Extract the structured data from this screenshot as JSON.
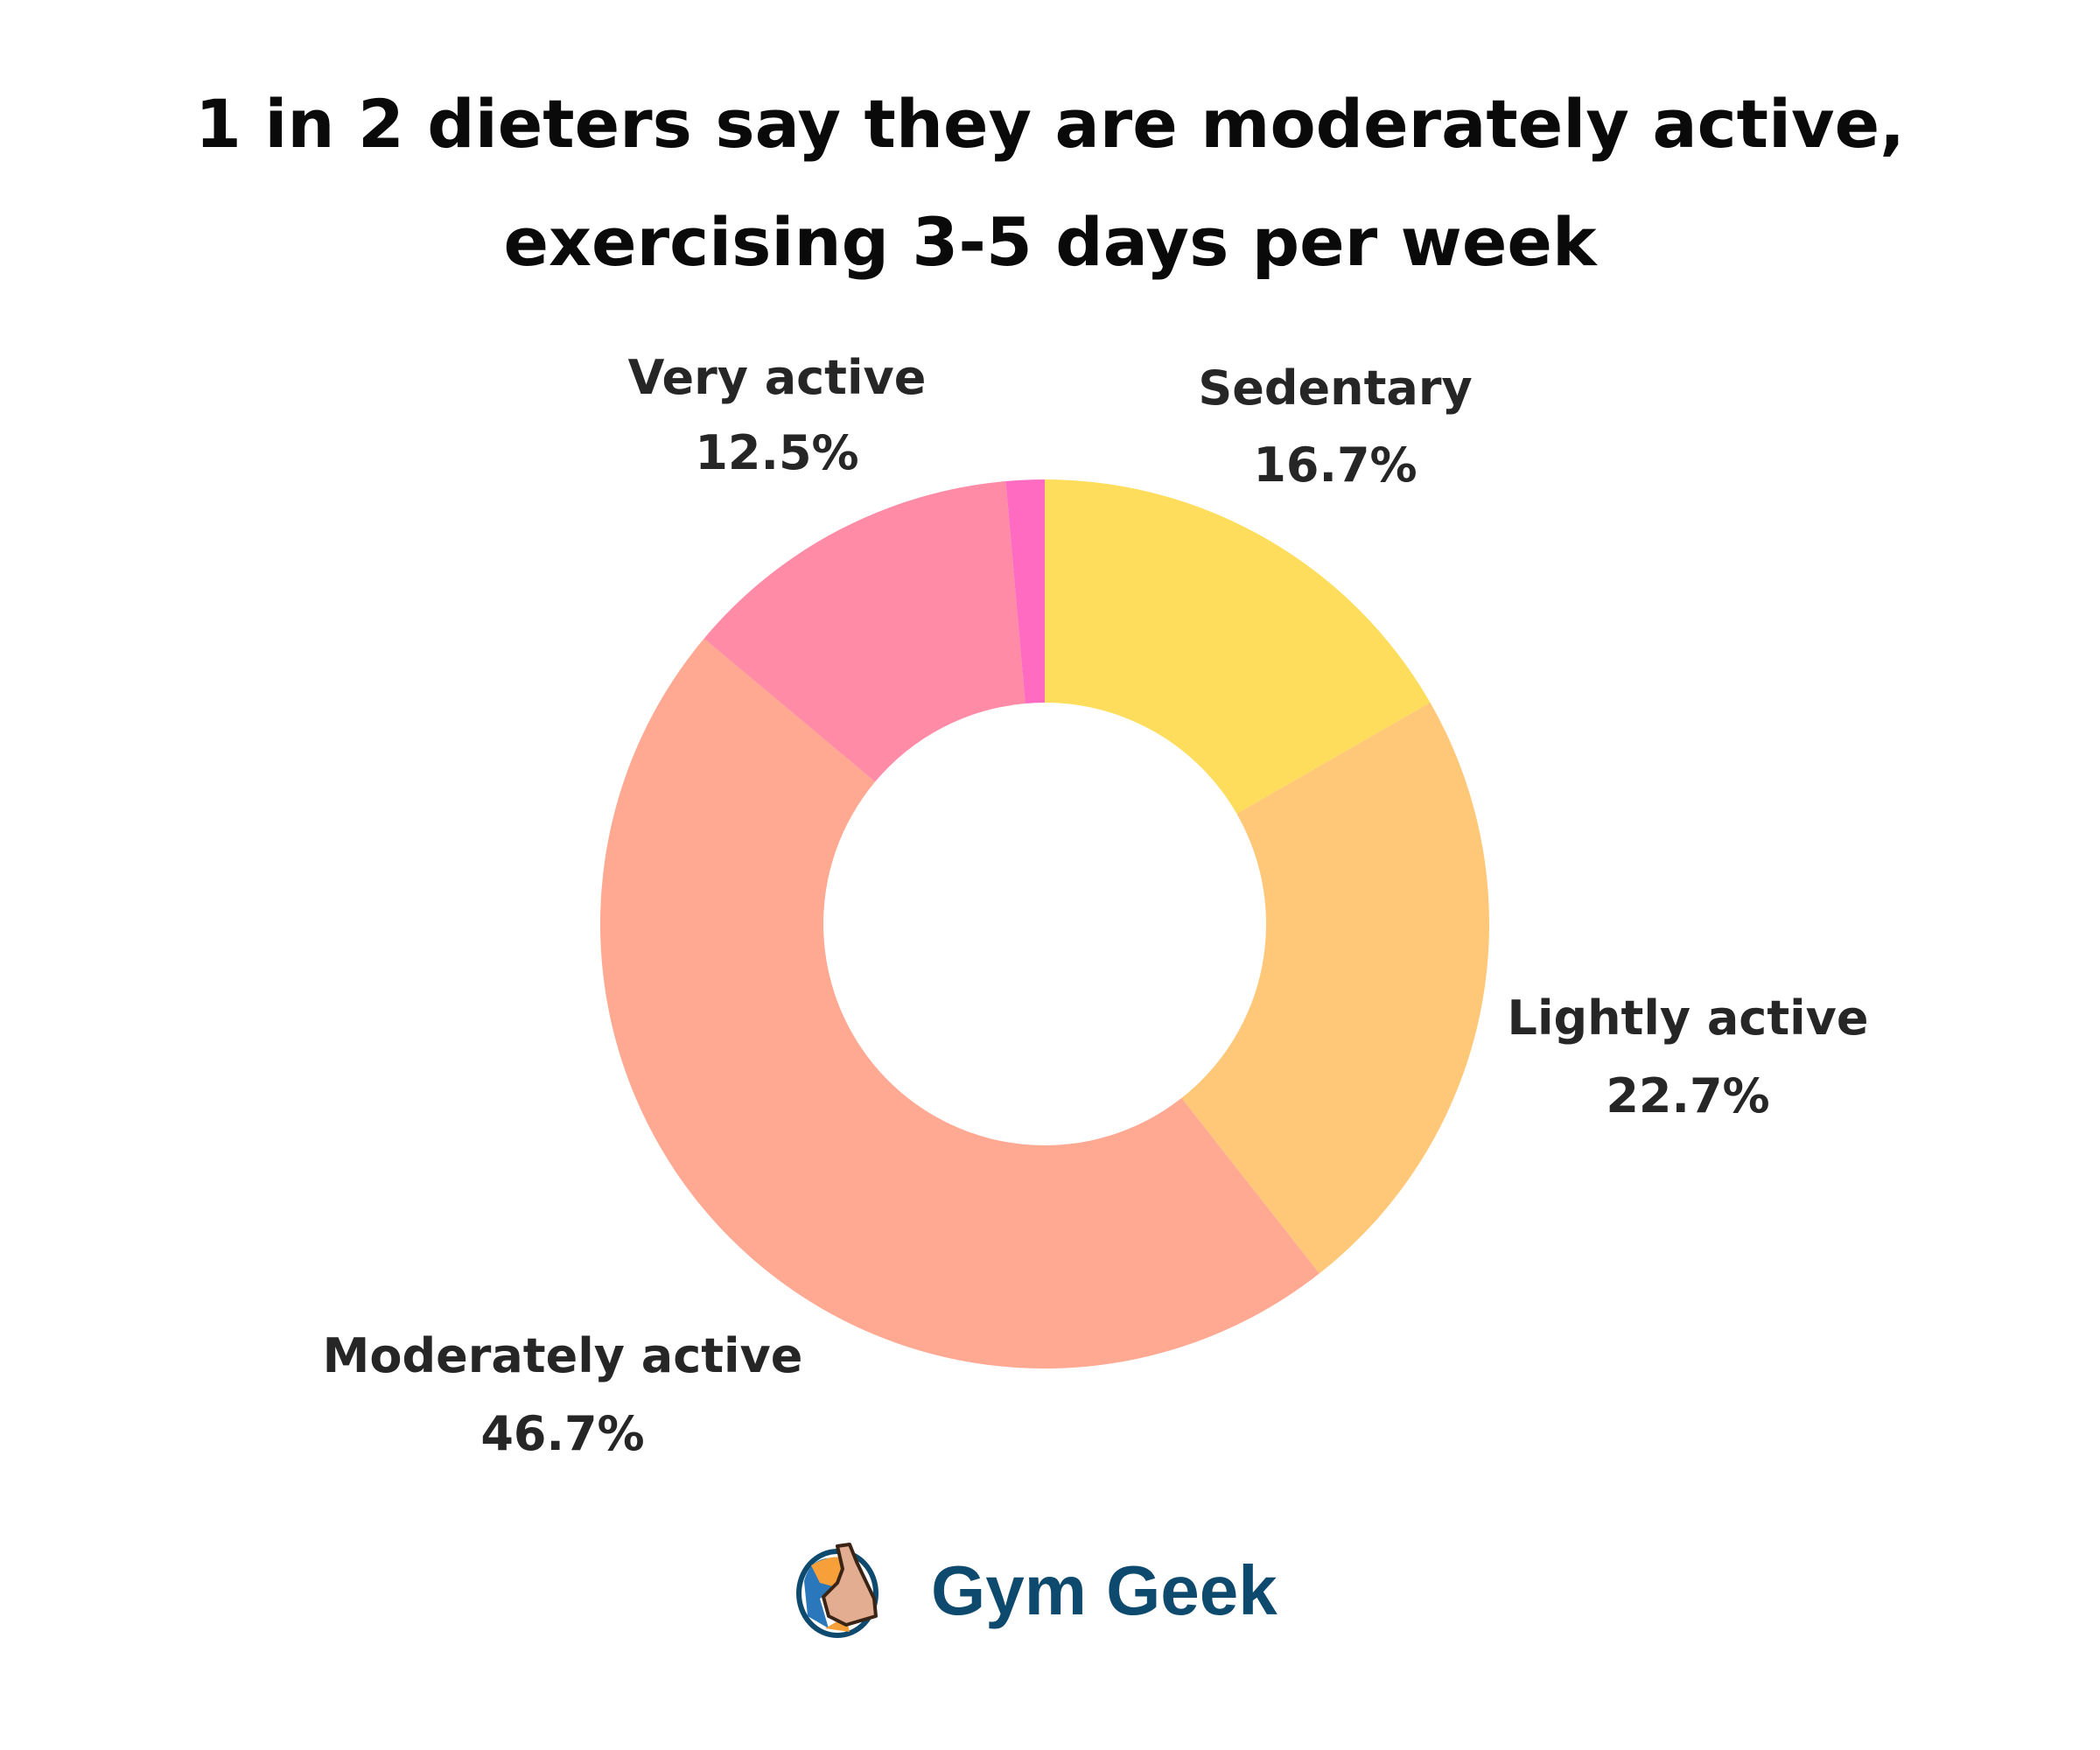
{
  "chart_data": {
    "type": "pie",
    "donut": true,
    "title": "1 in 2 dieters say they are moderately active, exercising 3-5 days per week",
    "title_lines": [
      "1 in 2 dieters say they are moderately active,",
      "exercising 3-5 days per week"
    ],
    "start": "top, clockwise",
    "slices": [
      {
        "label": "Sedentary",
        "value": 16.7,
        "value_label": "16.7%",
        "color": "#FFDD5C"
      },
      {
        "label": "Lightly active",
        "value": 22.7,
        "value_label": "22.7%",
        "color": "#FFC878"
      },
      {
        "label": "Moderately active",
        "value": 46.7,
        "value_label": "46.7%",
        "color": "#FFA892"
      },
      {
        "label": "Very active",
        "value": 12.5,
        "value_label": "12.5%",
        "color": "#FF8BA7"
      },
      {
        "label": "",
        "value": 1.4,
        "value_label": "",
        "color": "#FF6BC1"
      }
    ]
  },
  "brand": {
    "name": "Gym Geek",
    "color": "#0E4A6E",
    "logo_icon": "flexing-arm-logo"
  }
}
